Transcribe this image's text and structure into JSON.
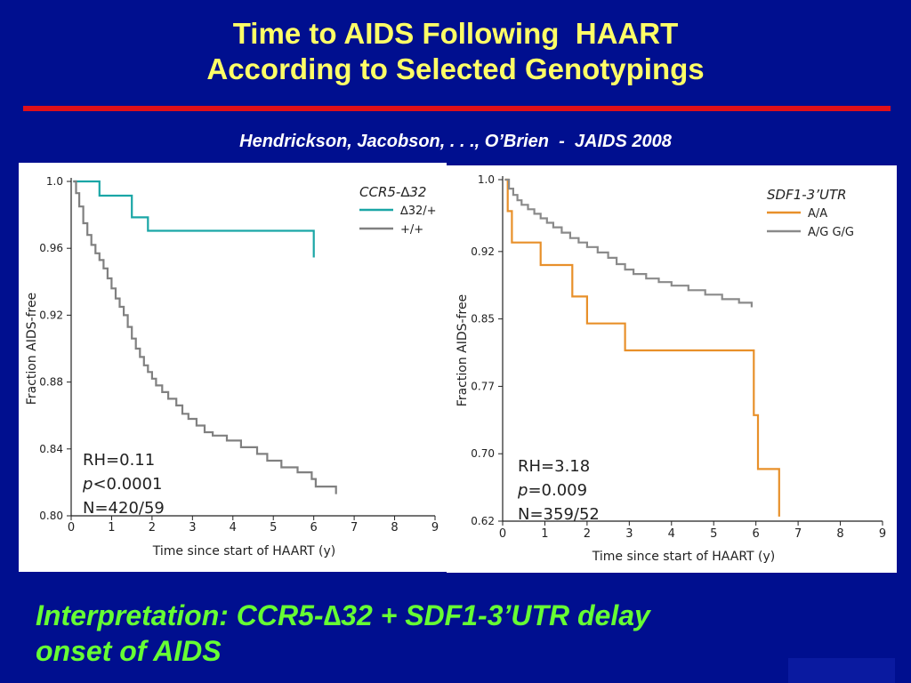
{
  "slide": {
    "title_line1": "Time to AIDS Following  HAART",
    "title_line2": "According to Selected Genotypings",
    "citation": "Hendrickson, Jacobson, . . ., O’Brien  -  JAIDS 2008",
    "interpretation_line1": "Interpretation: CCR5-∆32 + SDF1-3’UTR delay",
    "interpretation_line2": "onset of AIDS",
    "colors": {
      "background": "#000f8f",
      "title": "#ffff66",
      "rule": "#e0101a",
      "interpretation": "#66ff33"
    }
  },
  "chart_data": [
    {
      "type": "line",
      "xlabel": "Time since start of HAART (y)",
      "ylabel": "Fraction AIDS-free",
      "xlim": [
        0,
        9
      ],
      "ylim": [
        0.8,
        1.0
      ],
      "x_ticks": [
        "0",
        "1",
        "2",
        "3",
        "4",
        "5",
        "6",
        "7",
        "8",
        "9"
      ],
      "y_ticks": [
        {
          "value": 1.0,
          "label": "1.0"
        },
        {
          "value": 0.96,
          "label": "0.96"
        },
        {
          "value": 0.92,
          "label": "0.92"
        },
        {
          "value": 0.88,
          "label": "0.88"
        },
        {
          "value": 0.84,
          "label": "0.84"
        },
        {
          "value": 0.8,
          "label": "0.80"
        }
      ],
      "legend_title": "CCR5-∆32",
      "legend_position": "top-right",
      "stats": [
        "RH=0.11",
        "p<0.0001",
        "N=420/59"
      ],
      "series": [
        {
          "name": "∆32/+",
          "color": "#1aa6a6",
          "points": [
            [
              0.05,
              1.0
            ],
            [
              0.7,
              1.0
            ],
            [
              0.7,
              0.9915
            ],
            [
              1.5,
              0.9915
            ],
            [
              1.5,
              0.9785
            ],
            [
              1.9,
              0.9785
            ],
            [
              1.9,
              0.9705
            ],
            [
              6.0,
              0.9705
            ],
            [
              6.0,
              0.9545
            ]
          ]
        },
        {
          "name": "+/+",
          "color": "#808080",
          "points": [
            [
              0.05,
              1.0
            ],
            [
              0.12,
              1.0
            ],
            [
              0.12,
              0.993
            ],
            [
              0.2,
              0.993
            ],
            [
              0.2,
              0.985
            ],
            [
              0.3,
              0.985
            ],
            [
              0.3,
              0.975
            ],
            [
              0.4,
              0.975
            ],
            [
              0.4,
              0.968
            ],
            [
              0.5,
              0.968
            ],
            [
              0.5,
              0.962
            ],
            [
              0.6,
              0.962
            ],
            [
              0.6,
              0.957
            ],
            [
              0.7,
              0.957
            ],
            [
              0.7,
              0.953
            ],
            [
              0.8,
              0.953
            ],
            [
              0.8,
              0.948
            ],
            [
              0.9,
              0.948
            ],
            [
              0.9,
              0.942
            ],
            [
              1.0,
              0.942
            ],
            [
              1.0,
              0.936
            ],
            [
              1.1,
              0.936
            ],
            [
              1.1,
              0.93
            ],
            [
              1.2,
              0.93
            ],
            [
              1.2,
              0.925
            ],
            [
              1.3,
              0.925
            ],
            [
              1.3,
              0.92
            ],
            [
              1.4,
              0.92
            ],
            [
              1.4,
              0.913
            ],
            [
              1.5,
              0.913
            ],
            [
              1.5,
              0.906
            ],
            [
              1.6,
              0.906
            ],
            [
              1.6,
              0.9
            ],
            [
              1.7,
              0.9
            ],
            [
              1.7,
              0.895
            ],
            [
              1.8,
              0.895
            ],
            [
              1.8,
              0.89
            ],
            [
              1.9,
              0.89
            ],
            [
              1.9,
              0.886
            ],
            [
              2.0,
              0.886
            ],
            [
              2.0,
              0.882
            ],
            [
              2.1,
              0.882
            ],
            [
              2.1,
              0.878
            ],
            [
              2.25,
              0.878
            ],
            [
              2.25,
              0.874
            ],
            [
              2.4,
              0.874
            ],
            [
              2.4,
              0.87
            ],
            [
              2.6,
              0.87
            ],
            [
              2.6,
              0.866
            ],
            [
              2.75,
              0.866
            ],
            [
              2.75,
              0.861
            ],
            [
              2.9,
              0.861
            ],
            [
              2.9,
              0.858
            ],
            [
              3.1,
              0.858
            ],
            [
              3.1,
              0.854
            ],
            [
              3.3,
              0.854
            ],
            [
              3.3,
              0.85
            ],
            [
              3.5,
              0.85
            ],
            [
              3.5,
              0.848
            ],
            [
              3.85,
              0.848
            ],
            [
              3.85,
              0.845
            ],
            [
              4.2,
              0.845
            ],
            [
              4.2,
              0.841
            ],
            [
              4.6,
              0.841
            ],
            [
              4.6,
              0.837
            ],
            [
              4.85,
              0.837
            ],
            [
              4.85,
              0.833
            ],
            [
              5.2,
              0.833
            ],
            [
              5.2,
              0.829
            ],
            [
              5.6,
              0.829
            ],
            [
              5.6,
              0.826
            ],
            [
              5.95,
              0.826
            ],
            [
              5.95,
              0.822
            ],
            [
              6.05,
              0.822
            ],
            [
              6.05,
              0.8175
            ],
            [
              6.55,
              0.8175
            ],
            [
              6.55,
              0.813
            ]
          ]
        }
      ]
    },
    {
      "type": "line",
      "xlabel": "Time since start of HAART (y)",
      "ylabel": "Fraction AIDS-free",
      "xlim": [
        0,
        9
      ],
      "ylim": [
        0.62,
        1.0
      ],
      "x_ticks": [
        "0",
        "1",
        "2",
        "3",
        "4",
        "5",
        "6",
        "7",
        "8",
        "9"
      ],
      "y_ticks": [
        {
          "value": 1.0,
          "label": "1.0"
        },
        {
          "value": 0.92,
          "label": "0.92"
        },
        {
          "value": 0.845,
          "label": "0.85"
        },
        {
          "value": 0.77,
          "label": "0.77"
        },
        {
          "value": 0.695,
          "label": "0.70"
        },
        {
          "value": 0.62,
          "label": "0.62"
        }
      ],
      "legend_title": "SDF1-3’UTR",
      "legend_position": "top-right",
      "stats": [
        "RH=3.18",
        "p=0.009",
        "N=359/52"
      ],
      "series": [
        {
          "name": "A/A",
          "color": "#e8902a",
          "points": [
            [
              0.05,
              1.0
            ],
            [
              0.12,
              1.0
            ],
            [
              0.12,
              0.965
            ],
            [
              0.22,
              0.965
            ],
            [
              0.22,
              0.93
            ],
            [
              0.9,
              0.93
            ],
            [
              0.9,
              0.905
            ],
            [
              1.65,
              0.905
            ],
            [
              1.65,
              0.87
            ],
            [
              2.0,
              0.87
            ],
            [
              2.0,
              0.84
            ],
            [
              2.9,
              0.84
            ],
            [
              2.9,
              0.81
            ],
            [
              5.95,
              0.81
            ],
            [
              5.95,
              0.738
            ],
            [
              6.05,
              0.738
            ],
            [
              6.05,
              0.678
            ],
            [
              6.55,
              0.678
            ],
            [
              6.55,
              0.625
            ]
          ]
        },
        {
          "name": "A/G G/G",
          "color": "#8a8a8a",
          "points": [
            [
              0.05,
              1.0
            ],
            [
              0.15,
              1.0
            ],
            [
              0.15,
              0.99
            ],
            [
              0.25,
              0.99
            ],
            [
              0.25,
              0.983
            ],
            [
              0.35,
              0.983
            ],
            [
              0.35,
              0.977
            ],
            [
              0.45,
              0.977
            ],
            [
              0.45,
              0.972
            ],
            [
              0.6,
              0.972
            ],
            [
              0.6,
              0.967
            ],
            [
              0.75,
              0.967
            ],
            [
              0.75,
              0.962
            ],
            [
              0.9,
              0.962
            ],
            [
              0.9,
              0.957
            ],
            [
              1.05,
              0.957
            ],
            [
              1.05,
              0.952
            ],
            [
              1.2,
              0.952
            ],
            [
              1.2,
              0.947
            ],
            [
              1.4,
              0.947
            ],
            [
              1.4,
              0.941
            ],
            [
              1.6,
              0.941
            ],
            [
              1.6,
              0.935
            ],
            [
              1.8,
              0.935
            ],
            [
              1.8,
              0.93
            ],
            [
              2.0,
              0.93
            ],
            [
              2.0,
              0.925
            ],
            [
              2.25,
              0.925
            ],
            [
              2.25,
              0.919
            ],
            [
              2.5,
              0.919
            ],
            [
              2.5,
              0.913
            ],
            [
              2.7,
              0.913
            ],
            [
              2.7,
              0.906
            ],
            [
              2.9,
              0.906
            ],
            [
              2.9,
              0.9
            ],
            [
              3.1,
              0.9
            ],
            [
              3.1,
              0.895
            ],
            [
              3.4,
              0.895
            ],
            [
              3.4,
              0.89
            ],
            [
              3.7,
              0.89
            ],
            [
              3.7,
              0.886
            ],
            [
              4.0,
              0.886
            ],
            [
              4.0,
              0.882
            ],
            [
              4.4,
              0.882
            ],
            [
              4.4,
              0.877
            ],
            [
              4.8,
              0.877
            ],
            [
              4.8,
              0.872
            ],
            [
              5.2,
              0.872
            ],
            [
              5.2,
              0.867
            ],
            [
              5.6,
              0.867
            ],
            [
              5.6,
              0.863
            ],
            [
              5.9,
              0.863
            ],
            [
              5.9,
              0.858
            ]
          ]
        }
      ]
    }
  ]
}
